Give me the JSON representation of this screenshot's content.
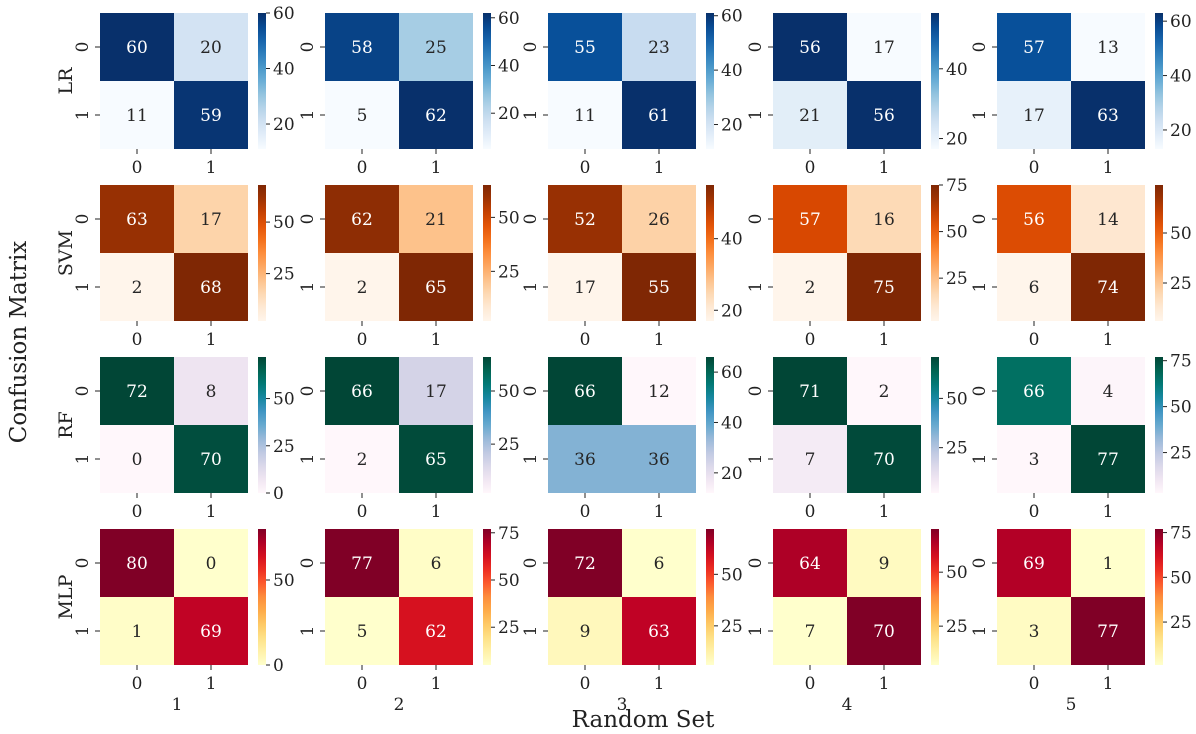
{
  "figure": {
    "ylabel": "Confusion Matrix",
    "xlabel": "Random Set"
  },
  "chart_data": {
    "type": "heatmap",
    "title": "",
    "xlabel": "Random Set",
    "ylabel": "Confusion Matrix",
    "rows": [
      {
        "model": "LR",
        "colormap": "Blues",
        "colors": [
          "#f7fbff",
          "#08306b"
        ],
        "matrices": [
          {
            "set": "1",
            "values": [
              [
                60,
                20
              ],
              [
                11,
                59
              ]
            ],
            "range": [
              11,
              60
            ],
            "ticks": [
              20,
              40,
              60
            ]
          },
          {
            "set": "2",
            "values": [
              [
                58,
                25
              ],
              [
                5,
                62
              ]
            ],
            "range": [
              5,
              62
            ],
            "ticks": [
              20,
              40,
              60
            ]
          },
          {
            "set": "3",
            "values": [
              [
                55,
                23
              ],
              [
                11,
                61
              ]
            ],
            "range": [
              11,
              61
            ],
            "ticks": [
              20,
              40,
              60
            ]
          },
          {
            "set": "4",
            "values": [
              [
                56,
                17
              ],
              [
                21,
                56
              ]
            ],
            "range": [
              17,
              56
            ],
            "ticks": [
              20,
              40
            ]
          },
          {
            "set": "5",
            "values": [
              [
                57,
                13
              ],
              [
                17,
                63
              ]
            ],
            "range": [
              13,
              63
            ],
            "ticks": [
              20,
              40,
              60
            ]
          }
        ]
      },
      {
        "model": "SVM",
        "colormap": "Oranges",
        "colors": [
          "#fff5eb",
          "#7f2704"
        ],
        "matrices": [
          {
            "set": "1",
            "values": [
              [
                63,
                17
              ],
              [
                2,
                68
              ]
            ],
            "range": [
              2,
              68
            ],
            "ticks": [
              25,
              50
            ]
          },
          {
            "set": "2",
            "values": [
              [
                62,
                21
              ],
              [
                2,
                65
              ]
            ],
            "range": [
              2,
              65
            ],
            "ticks": [
              25,
              50
            ]
          },
          {
            "set": "3",
            "values": [
              [
                52,
                26
              ],
              [
                17,
                55
              ]
            ],
            "range": [
              17,
              55
            ],
            "ticks": [
              20,
              40
            ]
          },
          {
            "set": "4",
            "values": [
              [
                57,
                16
              ],
              [
                2,
                75
              ]
            ],
            "range": [
              2,
              75
            ],
            "ticks": [
              25,
              50,
              75
            ]
          },
          {
            "set": "5",
            "values": [
              [
                56,
                14
              ],
              [
                6,
                74
              ]
            ],
            "range": [
              6,
              74
            ],
            "ticks": [
              25,
              50
            ]
          }
        ]
      },
      {
        "model": "RF",
        "colormap": "PuBuGn",
        "colors": [
          "#fff7fb",
          "#014636"
        ],
        "matrices": [
          {
            "set": "1",
            "values": [
              [
                72,
                8
              ],
              [
                0,
                70
              ]
            ],
            "range": [
              0,
              72
            ],
            "ticks": [
              0,
              25,
              50
            ]
          },
          {
            "set": "2",
            "values": [
              [
                66,
                17
              ],
              [
                2,
                65
              ]
            ],
            "range": [
              2,
              66
            ],
            "ticks": [
              25,
              50
            ]
          },
          {
            "set": "3",
            "values": [
              [
                66,
                12
              ],
              [
                36,
                36
              ]
            ],
            "range": [
              12,
              66
            ],
            "ticks": [
              20,
              40,
              60
            ]
          },
          {
            "set": "4",
            "values": [
              [
                71,
                2
              ],
              [
                7,
                70
              ]
            ],
            "range": [
              2,
              71
            ],
            "ticks": [
              25,
              50
            ]
          },
          {
            "set": "5",
            "values": [
              [
                66,
                4
              ],
              [
                3,
                77
              ]
            ],
            "range": [
              3,
              77
            ],
            "ticks": [
              25,
              50,
              75
            ]
          }
        ]
      },
      {
        "model": "MLP",
        "colormap": "YlOrRd",
        "colors": [
          "#ffffcc",
          "#800026"
        ],
        "matrices": [
          {
            "set": "1",
            "values": [
              [
                80,
                0
              ],
              [
                1,
                69
              ]
            ],
            "range": [
              0,
              80
            ],
            "ticks": [
              0,
              50
            ]
          },
          {
            "set": "2",
            "values": [
              [
                77,
                6
              ],
              [
                5,
                62
              ]
            ],
            "range": [
              5,
              77
            ],
            "ticks": [
              25,
              50,
              75
            ]
          },
          {
            "set": "3",
            "values": [
              [
                72,
                6
              ],
              [
                9,
                63
              ]
            ],
            "range": [
              6,
              72
            ],
            "ticks": [
              25,
              50
            ]
          },
          {
            "set": "4",
            "values": [
              [
                64,
                9
              ],
              [
                7,
                70
              ]
            ],
            "range": [
              7,
              70
            ],
            "ticks": [
              25,
              50
            ]
          },
          {
            "set": "5",
            "values": [
              [
                69,
                1
              ],
              [
                3,
                77
              ]
            ],
            "range": [
              1,
              77
            ],
            "ticks": [
              25,
              50,
              75
            ]
          }
        ]
      }
    ],
    "cell_tick_labels": [
      "0",
      "1"
    ],
    "column_labels": [
      "1",
      "2",
      "3",
      "4",
      "5"
    ]
  }
}
